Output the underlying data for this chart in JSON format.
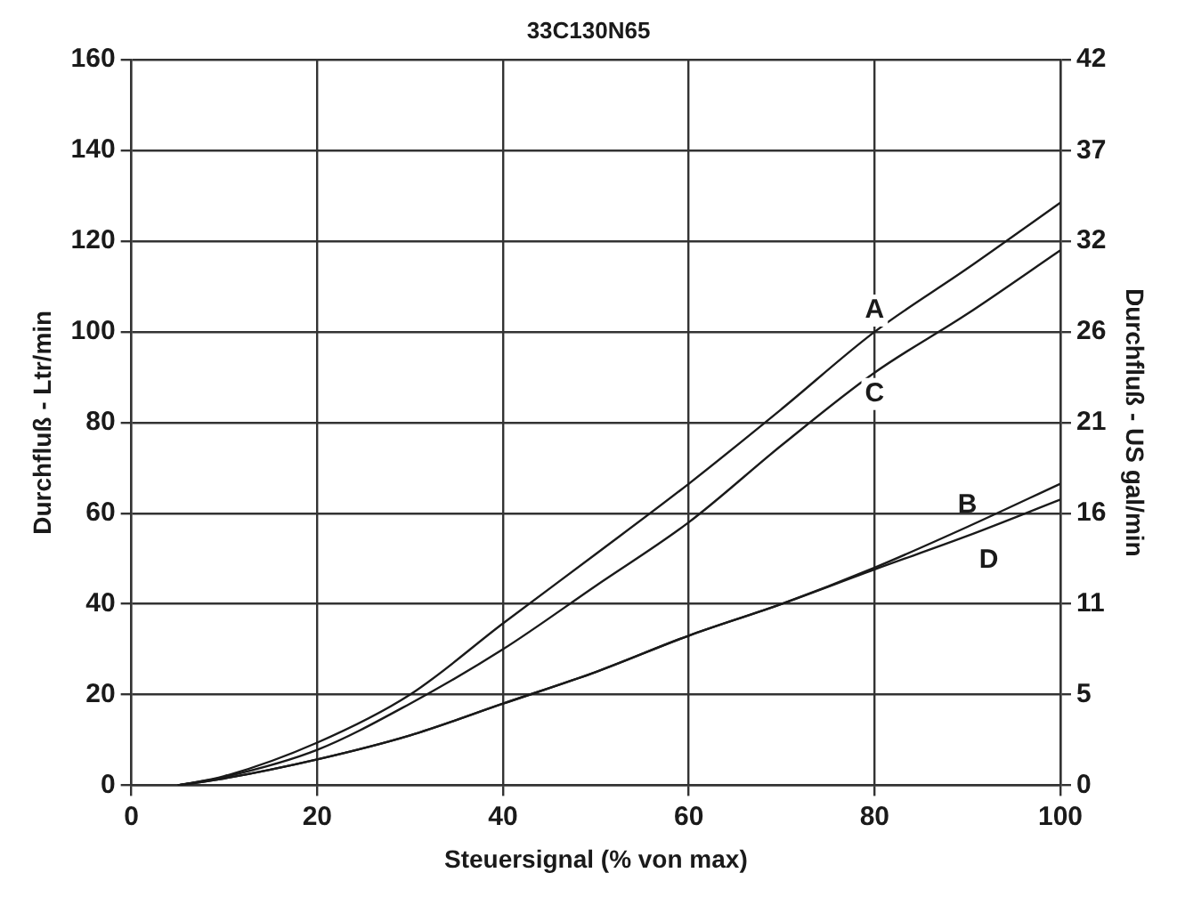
{
  "chart_data": {
    "type": "line",
    "title": "33C130N65",
    "xlabel": "Steuersignal (% von max)",
    "ylabel": "Durchfluß - Ltr/min",
    "y2label": "Durchfluß - US gal/min",
    "xlim": [
      0,
      100
    ],
    "xticks": [
      0,
      20,
      40,
      60,
      80,
      100
    ],
    "ylim": [
      0,
      160
    ],
    "yticks": [
      0,
      20,
      40,
      60,
      80,
      100,
      120,
      140,
      160
    ],
    "y2lim": [
      0,
      42.27
    ],
    "y2ticks": [
      0,
      {
        "value": 5.28,
        "label": "5"
      },
      {
        "value": 10.57,
        "label": "11"
      },
      {
        "value": 15.85,
        "label": "16"
      },
      {
        "value": 21.13,
        "label": "21"
      },
      {
        "value": 26.42,
        "label": "26"
      },
      {
        "value": 31.7,
        "label": "32"
      },
      {
        "value": 36.98,
        "label": "37"
      },
      {
        "value": 42.27,
        "label": "42"
      }
    ],
    "x": [
      5,
      10,
      20,
      30,
      40,
      50,
      60,
      70,
      80,
      90,
      100
    ],
    "series": [
      {
        "name": "A",
        "color": "#1a1a1a",
        "values": [
          0,
          2,
          9.4,
          20,
          35.7,
          51,
          66.5,
          83,
          100,
          114,
          128.5
        ]
      },
      {
        "name": "B",
        "color": "#1a1a1a",
        "values": [
          0,
          1.5,
          5.7,
          11,
          18,
          25,
          33,
          40,
          48,
          57,
          66.5
        ]
      },
      {
        "name": "C",
        "color": "#1a1a1a",
        "values": [
          0,
          1.8,
          7.8,
          18,
          30,
          44,
          58,
          75,
          91,
          104,
          118
        ]
      },
      {
        "name": "D",
        "color": "#1a1a1a",
        "values": [
          0,
          1.5,
          5.7,
          11,
          18,
          25,
          33,
          40,
          47.6,
          55,
          63
        ]
      }
    ],
    "grid": true,
    "legend": false,
    "marker": "none",
    "line_style": "solid"
  }
}
